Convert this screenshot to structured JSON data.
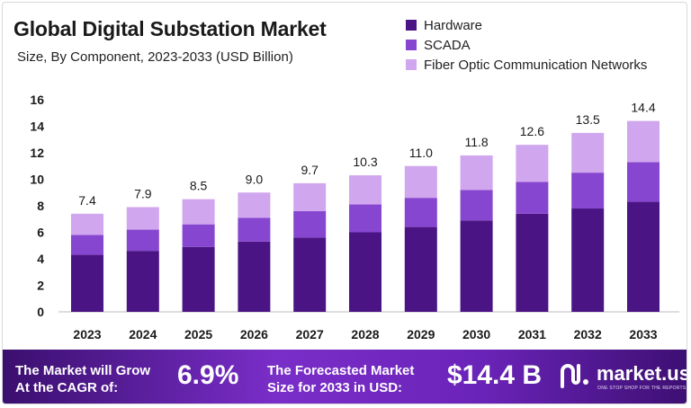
{
  "chart_data": {
    "type": "bar",
    "stacked": true,
    "title": "Global Digital Substation Market",
    "subtitle": "Size, By Component, 2023-2033 (USD Billion)",
    "categories": [
      "2023",
      "2024",
      "2025",
      "2026",
      "2027",
      "2028",
      "2029",
      "2030",
      "2031",
      "2032",
      "2033"
    ],
    "series": [
      {
        "name": "Hardware",
        "color": "#4b1485",
        "values": [
          4.3,
          4.6,
          4.9,
          5.3,
          5.6,
          6.0,
          6.4,
          6.9,
          7.4,
          7.8,
          8.3
        ]
      },
      {
        "name": "SCADA",
        "color": "#8746cf",
        "values": [
          1.5,
          1.6,
          1.7,
          1.8,
          2.0,
          2.1,
          2.2,
          2.3,
          2.4,
          2.7,
          3.0
        ]
      },
      {
        "name": "Fiber Optic Communication Networks",
        "color": "#d0a6ee",
        "values": [
          1.6,
          1.7,
          1.9,
          1.9,
          2.1,
          2.2,
          2.4,
          2.6,
          2.8,
          3.0,
          3.1
        ]
      }
    ],
    "totals": [
      "7.4",
      "7.9",
      "8.5",
      "9.0",
      "9.7",
      "10.3",
      "11.0",
      "11.8",
      "12.6",
      "13.5",
      "14.4"
    ],
    "yticks": [
      0,
      2,
      4,
      6,
      8,
      10,
      12,
      14,
      16
    ],
    "ylim": [
      0,
      16
    ],
    "grid": false,
    "legend_position": "top-right"
  },
  "banner": {
    "cagr_label_line1": "The Market will Grow",
    "cagr_label_line2": "At the CAGR of:",
    "cagr_value": "6.9%",
    "forecast_label_line1": "The Forecasted Market",
    "forecast_label_line2": "Size for 2033 in USD:",
    "forecast_value": "$14.4 B",
    "brand": "market.us",
    "brand_tagline": "ONE STOP SHOP FOR THE REPORTS"
  },
  "colors": {
    "banner_start": "#3a0f6e",
    "banner_mid": "#7a2ec9",
    "axis_text": "#1a1a1a"
  }
}
